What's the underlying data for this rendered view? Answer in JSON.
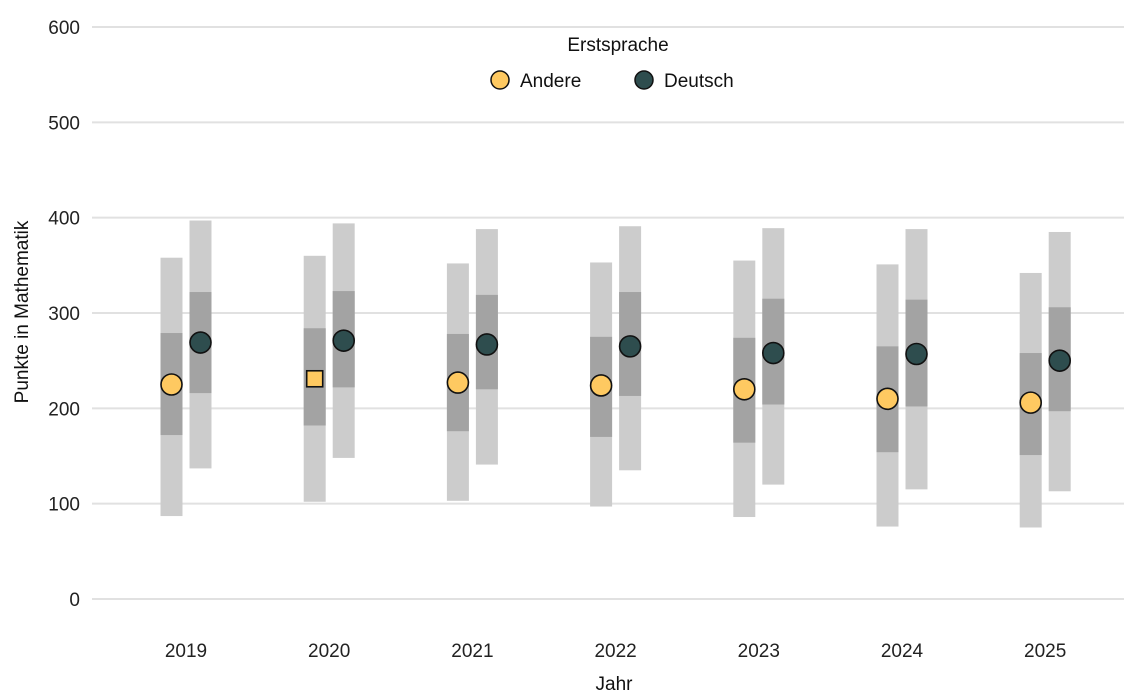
{
  "chart_data": {
    "type": "scatter",
    "xlabel": "Jahr",
    "ylabel": "Punkte in Mathematik",
    "ylim": [
      0,
      600
    ],
    "yticks": [
      0,
      100,
      200,
      300,
      400,
      500,
      600
    ],
    "grid": "horizontal",
    "categories": [
      "2019",
      "2020",
      "2021",
      "2022",
      "2023",
      "2024",
      "2025"
    ],
    "legend": {
      "title": "Erstsprache",
      "position": "top-center",
      "entries": [
        {
          "label": "Andere",
          "color": "#FEC961"
        },
        {
          "label": "Deutsch",
          "color": "#2E4D4E"
        }
      ]
    },
    "series": [
      {
        "name": "Andere",
        "color": "#FEC961",
        "values": [
          225,
          231,
          227,
          224,
          220,
          210,
          206
        ],
        "markers": [
          "circle",
          "square",
          "circle",
          "circle",
          "circle",
          "circle",
          "circle"
        ],
        "range_outer": [
          [
            87,
            358
          ],
          [
            102,
            360
          ],
          [
            103,
            352
          ],
          [
            97,
            353
          ],
          [
            86,
            355
          ],
          [
            76,
            351
          ],
          [
            75,
            342
          ]
        ],
        "range_inner": [
          [
            172,
            279
          ],
          [
            182,
            284
          ],
          [
            176,
            278
          ],
          [
            170,
            275
          ],
          [
            164,
            274
          ],
          [
            154,
            265
          ],
          [
            151,
            258
          ]
        ]
      },
      {
        "name": "Deutsch",
        "color": "#2E4D4E",
        "values": [
          269,
          271,
          267,
          265,
          258,
          257,
          250
        ],
        "markers": [
          "circle",
          "circle",
          "circle",
          "circle",
          "circle",
          "circle",
          "circle"
        ],
        "range_outer": [
          [
            137,
            397
          ],
          [
            148,
            394
          ],
          [
            141,
            388
          ],
          [
            135,
            391
          ],
          [
            120,
            389
          ],
          [
            115,
            388
          ],
          [
            113,
            385
          ]
        ],
        "range_inner": [
          [
            216,
            322
          ],
          [
            222,
            323
          ],
          [
            220,
            319
          ],
          [
            213,
            322
          ],
          [
            204,
            315
          ],
          [
            202,
            314
          ],
          [
            197,
            306
          ]
        ]
      }
    ],
    "colors": {
      "range_outer": "#CCCCCC",
      "range_inner": "#A3A3A3",
      "grid": "#E1E1E1",
      "marker_stroke": "#111111"
    }
  }
}
